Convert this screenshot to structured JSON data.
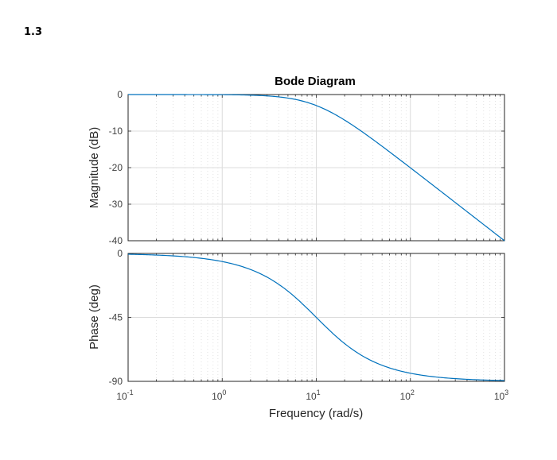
{
  "section_label": "1.3",
  "colors": {
    "curve": "#0072bd",
    "axes": "#262626",
    "grid": "#dcdcdc",
    "tick_label": "#404040"
  },
  "chart_data": {
    "type": "line",
    "title": "Bode Diagram",
    "xlabel": "Frequency  (rad/s)",
    "xscale": "log",
    "xlim": [
      0.1,
      1000
    ],
    "x_ticks": [
      {
        "base": "10",
        "exp": "-1"
      },
      {
        "base": "10",
        "exp": "0"
      },
      {
        "base": "10",
        "exp": "1"
      },
      {
        "base": "10",
        "exp": "2"
      },
      {
        "base": "10",
        "exp": "3"
      }
    ],
    "grid": true,
    "panels": [
      {
        "name": "magnitude",
        "ylabel": "Magnitude (dB)",
        "ylim": [
          -40,
          0
        ],
        "y_ticks": [
          "0",
          "-10",
          "-20",
          "-30",
          "-40"
        ],
        "series": [
          {
            "x": [
              0.1,
              0.2,
              0.5,
              1,
              2,
              3,
              5,
              7,
              10,
              15,
              20,
              30,
              50,
              70,
              100,
              200,
              300,
              500,
              700,
              1000
            ],
            "y": [
              0,
              0,
              0,
              -0.04,
              -0.17,
              -0.37,
              -0.97,
              -1.65,
              -3.01,
              -5.12,
              -6.99,
              -10.0,
              -14.15,
              -17.0,
              -20.04,
              -26.03,
              -29.54,
              -33.98,
              -36.9,
              -40.0
            ]
          }
        ]
      },
      {
        "name": "phase",
        "ylabel": "Phase (deg)",
        "ylim": [
          -90,
          0
        ],
        "y_ticks": [
          "0",
          "-45",
          "-90"
        ],
        "series": [
          {
            "x": [
              0.1,
              0.2,
              0.5,
              1,
              2,
              3,
              5,
              7,
              10,
              15,
              20,
              30,
              50,
              70,
              100,
              200,
              300,
              500,
              700,
              1000
            ],
            "y": [
              -0.57,
              -1.15,
              -2.86,
              -5.71,
              -11.31,
              -16.7,
              -26.57,
              -34.99,
              -45.0,
              -56.31,
              -63.43,
              -71.57,
              -78.69,
              -81.87,
              -84.29,
              -87.14,
              -88.09,
              -88.85,
              -89.18,
              -89.43
            ]
          }
        ]
      }
    ]
  }
}
